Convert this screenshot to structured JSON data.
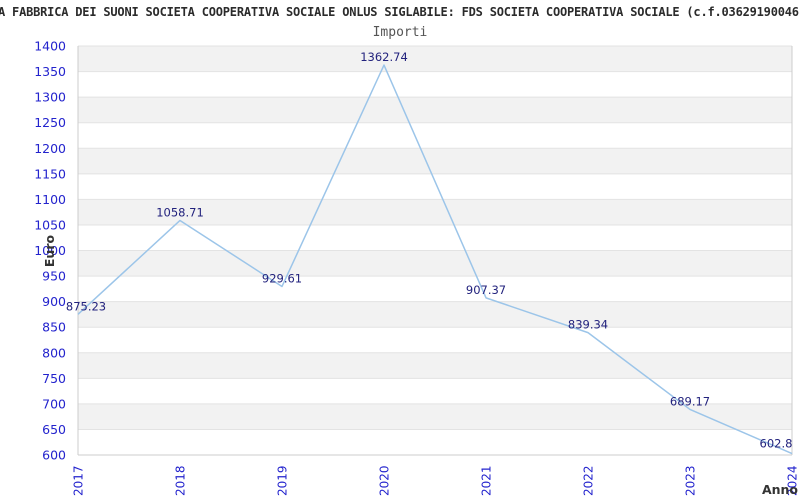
{
  "header": {
    "title": "A FABBRICA DEI SUONI SOCIETA COOPERATIVA SOCIALE ONLUS SIGLABILE: FDS SOCIETA COOPERATIVA SOCIALE (c.f.03629190046",
    "subtitle": "Importi"
  },
  "chart_data": {
    "type": "line",
    "title": "A FABBRICA DEI SUONI SOCIETA COOPERATIVA SOCIALE ONLUS SIGLABILE: FDS SOCIETA COOPERATIVA SOCIALE (c.f.03629190046",
    "subtitle": "Importi",
    "xlabel": "Anno",
    "ylabel": "Euro",
    "categories": [
      "2017",
      "2018",
      "2019",
      "2020",
      "2021",
      "2022",
      "2023",
      "2024"
    ],
    "values": [
      875.23,
      1058.71,
      929.61,
      1362.74,
      907.37,
      839.34,
      689.17,
      602.8
    ],
    "point_labels": [
      "875.23",
      "1058.71",
      "929.61",
      "1362.74",
      "907.37",
      "839.34",
      "689.17",
      "602.8"
    ],
    "ylim": [
      600,
      1400
    ],
    "ytick_step": 50,
    "ytick_labels": [
      "1400",
      "1350",
      "1300",
      "1250",
      "1200",
      "1150",
      "1100",
      "1050",
      "1000",
      "950",
      "900",
      "850",
      "800",
      "750",
      "700",
      "650",
      "600"
    ],
    "grid": "alternating-horizontal-bands",
    "legend": "none",
    "colors": {
      "line": "#9cc5e9",
      "point_label": "#22227d",
      "tick_label": "#2323cd",
      "band_fill": "#f2f2f2",
      "band_line": "#e3e3e3",
      "plot_border": "#cccccc",
      "axis_title": "#333333",
      "title_text": "#2b2b2b",
      "subtitle_text": "#555555"
    }
  }
}
